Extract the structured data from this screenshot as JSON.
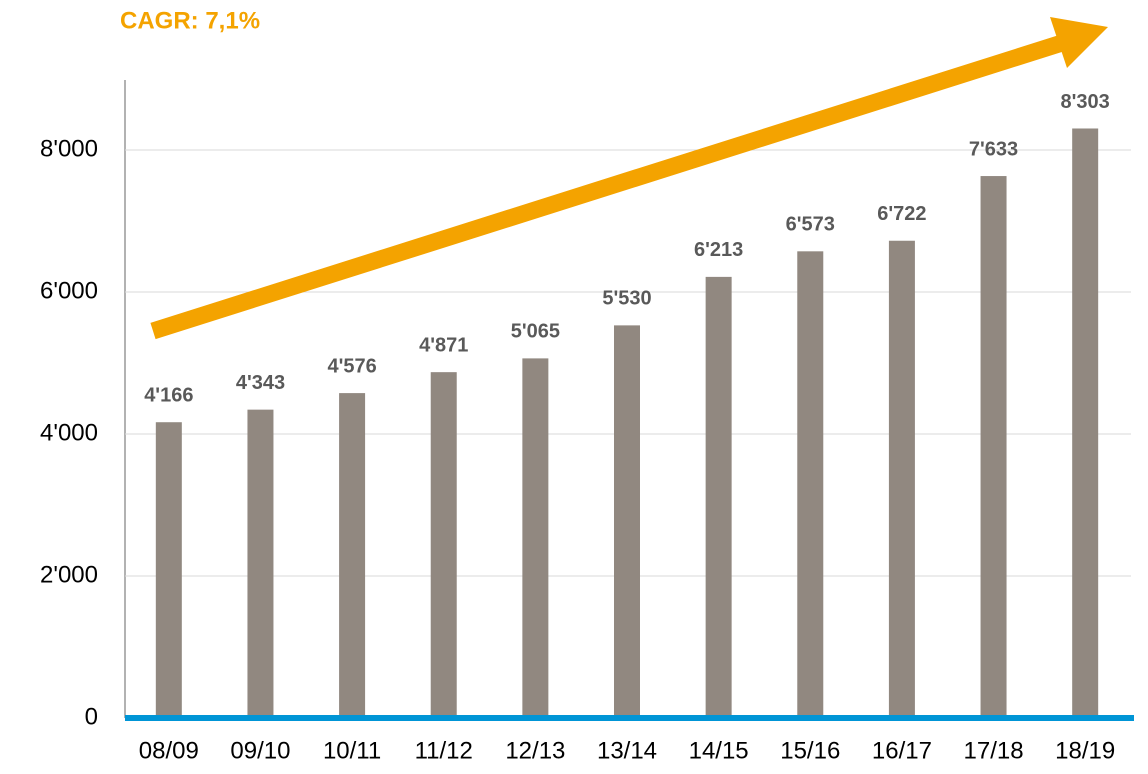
{
  "chart_data": {
    "type": "bar",
    "annotation": "CAGR: 7,1%",
    "categories": [
      "08/09",
      "09/10",
      "10/11",
      "11/12",
      "12/13",
      "13/14",
      "14/15",
      "15/16",
      "16/17",
      "17/18",
      "18/19"
    ],
    "values": [
      4166,
      4343,
      4576,
      4871,
      5065,
      5530,
      6213,
      6573,
      6722,
      7633,
      8303
    ],
    "value_labels": [
      "4'166",
      "4'343",
      "4'576",
      "4'871",
      "5'065",
      "5'530",
      "6'213",
      "6'573",
      "6'722",
      "7'633",
      "8'303"
    ],
    "color": "#918880",
    "ylim": [
      0,
      9000
    ],
    "yticks": [
      0,
      {
        "value": 2000,
        "label": "2'000"
      },
      {
        "value": 4000,
        "label": "4'000"
      },
      {
        "value": 6000,
        "label": "6'000"
      },
      {
        "value": 8000,
        "label": "8'000"
      }
    ],
    "grid": true
  }
}
